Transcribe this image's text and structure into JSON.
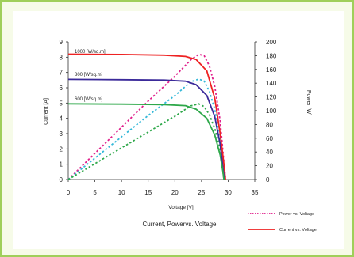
{
  "chart_data": {
    "type": "line",
    "title": "Current, Powervs. Voltage",
    "xlabel": "Voltage [V]",
    "ylabel": "Current [A]",
    "y2label": "Power [W]",
    "xlim": [
      0,
      35
    ],
    "ylim": [
      0,
      9
    ],
    "y2lim": [
      0,
      200
    ],
    "xticks": [
      "0",
      "5",
      "10",
      "15",
      "20",
      "25",
      "30",
      "35"
    ],
    "yticks": [
      "0",
      "1",
      "2",
      "3",
      "4",
      "5",
      "6",
      "7",
      "8",
      "9"
    ],
    "y2ticks": [
      "0",
      "20",
      "40",
      "60",
      "80",
      "100",
      "120",
      "140",
      "160",
      "180",
      "200"
    ],
    "grid": false,
    "legend": {
      "position": "bottom-right",
      "entries": [
        {
          "label": "Power vs. Voltage",
          "style": "dotted",
          "color": "#e0208c"
        },
        {
          "label": "Current vs. Voltage",
          "style": "solid",
          "color": "#ee2222"
        }
      ]
    },
    "annotations": [
      "1000 [W/sq.m]",
      "800 [W/sq.m]",
      "600 [W/sq.m]"
    ],
    "current_curves": [
      {
        "irradiance": "1000 [W/sq.m]",
        "color": "#ee2222",
        "x": [
          0,
          10,
          18,
          22,
          24,
          26,
          27.5,
          28.5,
          29.2,
          29.5
        ],
        "y": [
          8.2,
          8.18,
          8.13,
          8.05,
          7.85,
          7.1,
          5.3,
          3.0,
          1.0,
          0
        ]
      },
      {
        "irradiance": "800 [W/sq.m]",
        "color": "#3b2a9a",
        "x": [
          0,
          10,
          18,
          22,
          24,
          26,
          27.5,
          28.5,
          29.0,
          29.3
        ],
        "y": [
          6.55,
          6.53,
          6.5,
          6.43,
          6.2,
          5.5,
          4.1,
          2.3,
          0.8,
          0
        ]
      },
      {
        "irradiance": "600 [W/sq.m]",
        "color": "#2ea84a",
        "x": [
          0,
          10,
          18,
          22,
          24,
          26,
          27.5,
          28.5,
          29.0,
          29.2
        ],
        "y": [
          4.95,
          4.93,
          4.9,
          4.83,
          4.6,
          4.0,
          2.9,
          1.6,
          0.55,
          0
        ]
      }
    ],
    "power_curves": [
      {
        "irradiance": "1000 [W/sq.m]",
        "color": "#e0208c",
        "x": [
          0,
          5,
          10,
          15,
          20,
          23,
          24.5,
          25.5,
          26.5,
          27.5,
          28.5,
          29.5
        ],
        "y": [
          0,
          38,
          76,
          114,
          150,
          174,
          182,
          180,
          165,
          135,
          85,
          0
        ]
      },
      {
        "irradiance": "800 [W/sq.m]",
        "color": "#33b8d8",
        "x": [
          0,
          5,
          10,
          15,
          20,
          23,
          24.5,
          25.5,
          26.5,
          27.5,
          28.5,
          29.3
        ],
        "y": [
          0,
          31,
          62,
          93,
          122,
          142,
          146,
          143,
          128,
          102,
          60,
          0
        ]
      },
      {
        "irradiance": "600 [W/sq.m]",
        "color": "#2ea84a",
        "x": [
          0,
          5,
          10,
          15,
          20,
          23,
          24.5,
          25.5,
          26.5,
          27.5,
          28.5,
          29.2
        ],
        "y": [
          0,
          23,
          46,
          69,
          92,
          107,
          110,
          106,
          94,
          74,
          44,
          0
        ]
      }
    ]
  }
}
